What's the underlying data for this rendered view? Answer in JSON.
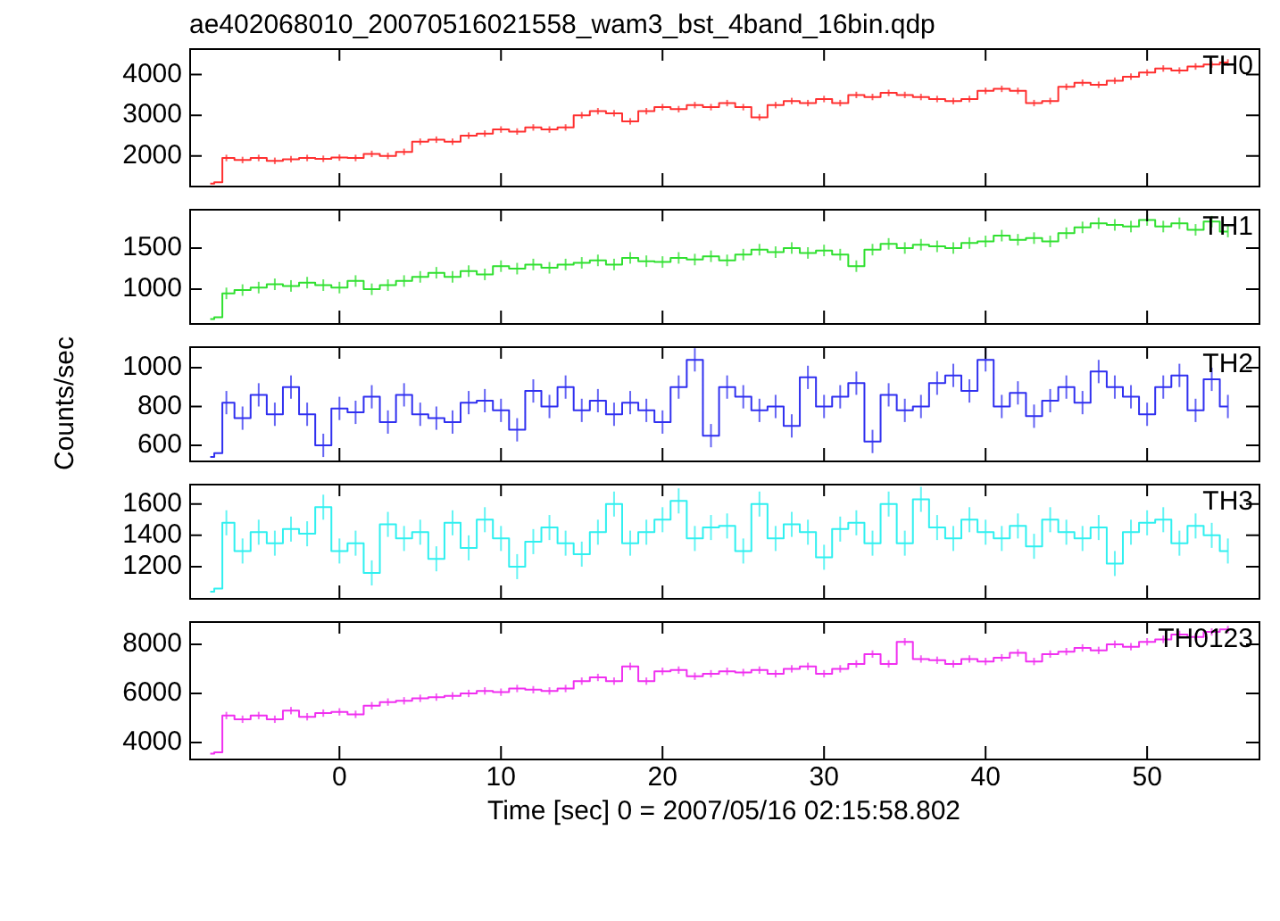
{
  "chart_data": [
    {
      "type": "step",
      "title": "ae402068010_20070516021558_wam3_bst_4band_16bin.qdp",
      "xlim": [
        -9.3,
        56.9
      ],
      "xticks": [
        0,
        10,
        20,
        30,
        40,
        50
      ],
      "ylim": [
        1270,
        4650
      ],
      "yticks": [
        2000,
        3000,
        4000
      ],
      "tick_labels": "y",
      "grid": false,
      "legend": false,
      "x": [
        -8,
        -7.5,
        -7,
        -6,
        -5,
        -4,
        -3,
        -2,
        -1,
        0,
        1,
        2,
        3,
        4,
        5,
        6,
        7,
        8,
        9,
        10,
        11,
        12,
        13,
        14,
        15,
        16,
        17,
        18,
        19,
        20,
        21,
        22,
        23,
        24,
        25,
        26,
        27,
        28,
        29,
        30,
        31,
        32,
        33,
        34,
        35,
        36,
        37,
        38,
        39,
        40,
        41,
        42,
        43,
        44,
        45,
        46,
        47,
        48,
        49,
        50,
        51,
        52,
        53,
        54,
        55
      ],
      "series": [
        {
          "name": "TH0",
          "color": "#ff3030",
          "values": [
            1320,
            1350,
            1950,
            1900,
            1950,
            1880,
            1920,
            1950,
            1930,
            1960,
            1950,
            2050,
            2000,
            2100,
            2350,
            2400,
            2350,
            2500,
            2550,
            2650,
            2600,
            2700,
            2650,
            2700,
            3000,
            3100,
            3050,
            2850,
            3100,
            3200,
            3150,
            3250,
            3200,
            3300,
            3200,
            2950,
            3250,
            3350,
            3300,
            3400,
            3300,
            3500,
            3450,
            3550,
            3500,
            3450,
            3400,
            3350,
            3400,
            3600,
            3650,
            3600,
            3300,
            3350,
            3700,
            3800,
            3750,
            3850,
            3950,
            4050,
            4150,
            4100,
            4200,
            4250,
            4300
          ],
          "errors": [
            null,
            null,
            80,
            80,
            80,
            80,
            80,
            80,
            80,
            80,
            80,
            80,
            80,
            80,
            80,
            80,
            80,
            80,
            80,
            80,
            80,
            80,
            80,
            80,
            80,
            80,
            80,
            80,
            80,
            80,
            80,
            80,
            80,
            80,
            80,
            80,
            80,
            80,
            80,
            80,
            80,
            80,
            80,
            80,
            80,
            80,
            80,
            80,
            80,
            80,
            80,
            80,
            80,
            80,
            80,
            80,
            80,
            80,
            80,
            80,
            80,
            80,
            80,
            80,
            80
          ]
        }
      ]
    },
    {
      "type": "step",
      "xlim": [
        -9.3,
        56.9
      ],
      "xticks": [
        0,
        10,
        20,
        30,
        40,
        50
      ],
      "ylim": [
        590,
        1975
      ],
      "yticks": [
        1000,
        1500
      ],
      "tick_labels": "y",
      "grid": false,
      "legend": false,
      "x": [
        -8,
        -7.5,
        -7,
        -6,
        -5,
        -4,
        -3,
        -2,
        -1,
        0,
        1,
        2,
        3,
        4,
        5,
        6,
        7,
        8,
        9,
        10,
        11,
        12,
        13,
        14,
        15,
        16,
        17,
        18,
        19,
        20,
        21,
        22,
        23,
        24,
        25,
        26,
        27,
        28,
        29,
        30,
        31,
        32,
        33,
        34,
        35,
        36,
        37,
        38,
        39,
        40,
        41,
        42,
        43,
        44,
        45,
        46,
        47,
        48,
        49,
        50,
        51,
        52,
        53,
        54,
        55
      ],
      "series": [
        {
          "name": "TH1",
          "color": "#30e030",
          "values": [
            640,
            660,
            950,
            990,
            1020,
            1060,
            1040,
            1080,
            1050,
            1020,
            1100,
            1000,
            1050,
            1100,
            1150,
            1200,
            1150,
            1220,
            1180,
            1280,
            1250,
            1300,
            1260,
            1300,
            1320,
            1350,
            1300,
            1380,
            1340,
            1330,
            1380,
            1360,
            1400,
            1350,
            1420,
            1480,
            1450,
            1500,
            1440,
            1470,
            1420,
            1280,
            1480,
            1550,
            1500,
            1540,
            1520,
            1500,
            1560,
            1580,
            1650,
            1600,
            1620,
            1580,
            1680,
            1750,
            1800,
            1780,
            1760,
            1840,
            1760,
            1800,
            1720,
            1820,
            1700
          ],
          "errors": [
            null,
            null,
            70,
            70,
            70,
            70,
            70,
            70,
            70,
            70,
            70,
            70,
            70,
            70,
            70,
            70,
            70,
            70,
            70,
            70,
            70,
            70,
            70,
            70,
            70,
            70,
            70,
            70,
            70,
            70,
            70,
            70,
            70,
            70,
            70,
            70,
            70,
            70,
            70,
            70,
            70,
            70,
            70,
            70,
            70,
            70,
            70,
            70,
            70,
            70,
            70,
            70,
            70,
            70,
            70,
            70,
            70,
            70,
            70,
            70,
            70,
            70,
            70,
            70,
            70
          ]
        }
      ]
    },
    {
      "type": "step",
      "ylabel": "Counts/sec",
      "xlim": [
        -9.3,
        56.9
      ],
      "xticks": [
        0,
        10,
        20,
        30,
        40,
        50
      ],
      "ylim": [
        522,
        1110
      ],
      "yticks": [
        600,
        800,
        1000
      ],
      "tick_labels": "y",
      "grid": false,
      "legend": false,
      "x": [
        -8,
        -7.5,
        -7,
        -6,
        -5,
        -4,
        -3,
        -2,
        -1,
        0,
        1,
        2,
        3,
        4,
        5,
        6,
        7,
        8,
        9,
        10,
        11,
        12,
        13,
        14,
        15,
        16,
        17,
        18,
        19,
        20,
        21,
        22,
        23,
        24,
        25,
        26,
        27,
        28,
        29,
        30,
        31,
        32,
        33,
        34,
        35,
        36,
        37,
        38,
        39,
        40,
        41,
        42,
        43,
        44,
        45,
        46,
        47,
        48,
        49,
        50,
        51,
        52,
        53,
        54,
        55
      ],
      "series": [
        {
          "name": "TH2",
          "color": "#3030f0",
          "values": [
            540,
            560,
            820,
            740,
            860,
            760,
            900,
            760,
            600,
            790,
            770,
            850,
            720,
            860,
            760,
            740,
            720,
            820,
            830,
            780,
            680,
            880,
            800,
            900,
            780,
            830,
            760,
            820,
            780,
            720,
            900,
            1040,
            650,
            900,
            850,
            780,
            800,
            700,
            950,
            800,
            850,
            920,
            620,
            860,
            780,
            800,
            920,
            960,
            880,
            1040,
            800,
            870,
            750,
            830,
            900,
            820,
            980,
            900,
            850,
            760,
            900,
            960,
            780,
            940,
            800
          ],
          "errors": [
            null,
            null,
            60,
            60,
            60,
            60,
            60,
            60,
            60,
            60,
            60,
            60,
            60,
            60,
            60,
            60,
            60,
            60,
            60,
            60,
            60,
            60,
            60,
            60,
            60,
            60,
            60,
            60,
            60,
            60,
            60,
            60,
            60,
            60,
            60,
            60,
            60,
            60,
            60,
            60,
            60,
            60,
            60,
            60,
            60,
            60,
            60,
            60,
            60,
            60,
            60,
            60,
            60,
            60,
            60,
            60,
            60,
            60,
            60,
            60,
            60,
            60,
            60,
            60,
            60
          ]
        }
      ]
    },
    {
      "type": "step",
      "xlim": [
        -9.3,
        56.9
      ],
      "xticks": [
        0,
        10,
        20,
        30,
        40,
        50
      ],
      "ylim": [
        1000,
        1730
      ],
      "yticks": [
        1200,
        1400,
        1600
      ],
      "tick_labels": "y",
      "grid": false,
      "legend": false,
      "x": [
        -8,
        -7.5,
        -7,
        -6,
        -5,
        -4,
        -3,
        -2,
        -1,
        0,
        1,
        2,
        3,
        4,
        5,
        6,
        7,
        8,
        9,
        10,
        11,
        12,
        13,
        14,
        15,
        16,
        17,
        18,
        19,
        20,
        21,
        22,
        23,
        24,
        25,
        26,
        27,
        28,
        29,
        30,
        31,
        32,
        33,
        34,
        35,
        36,
        37,
        38,
        39,
        40,
        41,
        42,
        43,
        44,
        45,
        46,
        47,
        48,
        49,
        50,
        51,
        52,
        53,
        54,
        55
      ],
      "series": [
        {
          "name": "TH3",
          "color": "#30f0f0",
          "values": [
            1040,
            1060,
            1480,
            1300,
            1420,
            1350,
            1440,
            1410,
            1580,
            1300,
            1350,
            1160,
            1470,
            1380,
            1420,
            1250,
            1480,
            1320,
            1500,
            1380,
            1200,
            1360,
            1450,
            1350,
            1280,
            1420,
            1600,
            1350,
            1420,
            1500,
            1620,
            1380,
            1450,
            1460,
            1300,
            1600,
            1380,
            1470,
            1420,
            1260,
            1440,
            1480,
            1350,
            1600,
            1350,
            1630,
            1450,
            1380,
            1500,
            1420,
            1380,
            1460,
            1330,
            1500,
            1420,
            1380,
            1450,
            1220,
            1420,
            1480,
            1500,
            1350,
            1460,
            1400,
            1300
          ],
          "errors": [
            null,
            null,
            80,
            80,
            80,
            80,
            80,
            80,
            80,
            80,
            80,
            80,
            80,
            80,
            80,
            80,
            80,
            80,
            80,
            80,
            80,
            80,
            80,
            80,
            80,
            80,
            80,
            80,
            80,
            80,
            80,
            80,
            80,
            80,
            80,
            80,
            80,
            80,
            80,
            80,
            80,
            80,
            80,
            80,
            80,
            80,
            80,
            80,
            80,
            80,
            80,
            80,
            80,
            80,
            80,
            80,
            80,
            80,
            80,
            80,
            80,
            80,
            80,
            80,
            80
          ]
        }
      ]
    },
    {
      "type": "step",
      "xlabel": "Time [sec] 0 = 2007/05/16 02:15:58.802",
      "xlim": [
        -9.3,
        56.9
      ],
      "xticks": [
        0,
        10,
        20,
        30,
        40,
        50
      ],
      "ylim": [
        3350,
        8940
      ],
      "yticks": [
        4000,
        6000,
        8000
      ],
      "grid": false,
      "legend": false,
      "x": [
        -8,
        -7.5,
        -7,
        -6,
        -5,
        -4,
        -3,
        -2,
        -1,
        0,
        1,
        2,
        3,
        4,
        5,
        6,
        7,
        8,
        9,
        10,
        11,
        12,
        13,
        14,
        15,
        16,
        17,
        18,
        19,
        20,
        21,
        22,
        23,
        24,
        25,
        26,
        27,
        28,
        29,
        30,
        31,
        32,
        33,
        34,
        35,
        36,
        37,
        38,
        39,
        40,
        41,
        42,
        43,
        44,
        45,
        46,
        47,
        48,
        49,
        50,
        51,
        52,
        53,
        54,
        55
      ],
      "series": [
        {
          "name": "TH0123",
          "color": "#f030f0",
          "values": [
            3550,
            3600,
            5100,
            4950,
            5100,
            4950,
            5300,
            5050,
            5200,
            5250,
            5150,
            5500,
            5650,
            5700,
            5800,
            5850,
            5900,
            6000,
            6100,
            6050,
            6200,
            6150,
            6100,
            6200,
            6500,
            6650,
            6500,
            7100,
            6500,
            6900,
            6950,
            6700,
            6800,
            6900,
            6850,
            6950,
            6800,
            7000,
            7100,
            6800,
            7000,
            7200,
            7600,
            7200,
            8100,
            7400,
            7350,
            7200,
            7400,
            7300,
            7450,
            7650,
            7300,
            7600,
            7700,
            7850,
            7750,
            8000,
            7900,
            8100,
            8200,
            8400,
            8300,
            8500,
            8600
          ],
          "errors": [
            null,
            null,
            150,
            150,
            150,
            150,
            150,
            150,
            150,
            150,
            150,
            150,
            150,
            150,
            150,
            150,
            150,
            150,
            150,
            150,
            150,
            150,
            150,
            150,
            150,
            150,
            150,
            150,
            150,
            150,
            150,
            150,
            150,
            150,
            150,
            150,
            150,
            150,
            150,
            150,
            150,
            150,
            150,
            150,
            150,
            150,
            150,
            150,
            150,
            150,
            150,
            150,
            150,
            150,
            150,
            150,
            150,
            150,
            150,
            150,
            150,
            150,
            150,
            150,
            150
          ]
        }
      ]
    }
  ]
}
